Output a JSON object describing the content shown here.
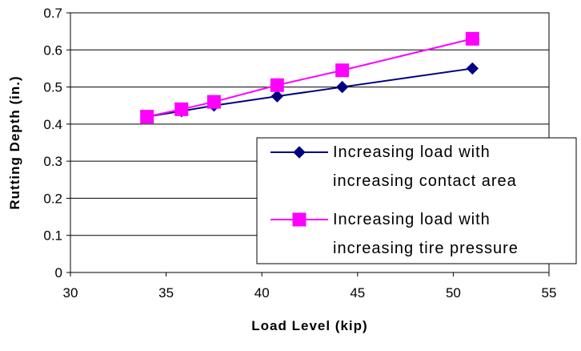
{
  "chart_data": {
    "type": "line",
    "title": "",
    "xlabel": "Load Level (kip)",
    "ylabel": "Rutting Depth (in.)",
    "xlim": [
      30,
      55
    ],
    "ylim": [
      0,
      0.7
    ],
    "x_ticks": [
      "30",
      "35",
      "40",
      "45",
      "50",
      "55"
    ],
    "y_ticks": [
      "0",
      "0.1",
      "0.2",
      "0.3",
      "0.4",
      "0.5",
      "0.6",
      "0.7"
    ],
    "grid": "horizontal",
    "legend_position": "bottom-right",
    "series": [
      {
        "name": "Increasing load with increasing contact area",
        "legend_lines": [
          "Increasing load with",
          "increasing contact area"
        ],
        "marker": "diamond",
        "color": "#000080",
        "x": [
          34,
          35.8,
          37.5,
          40.8,
          44.2,
          51
        ],
        "y": [
          0.42,
          0.435,
          0.45,
          0.475,
          0.5,
          0.55
        ]
      },
      {
        "name": "Increasing load with increasing tire pressure",
        "legend_lines": [
          "Increasing load with",
          "increasing tire pressure"
        ],
        "marker": "square",
        "color": "#ff00ff",
        "x": [
          34,
          35.8,
          37.5,
          40.8,
          44.2,
          51
        ],
        "y": [
          0.42,
          0.44,
          0.46,
          0.505,
          0.545,
          0.63
        ]
      }
    ]
  }
}
